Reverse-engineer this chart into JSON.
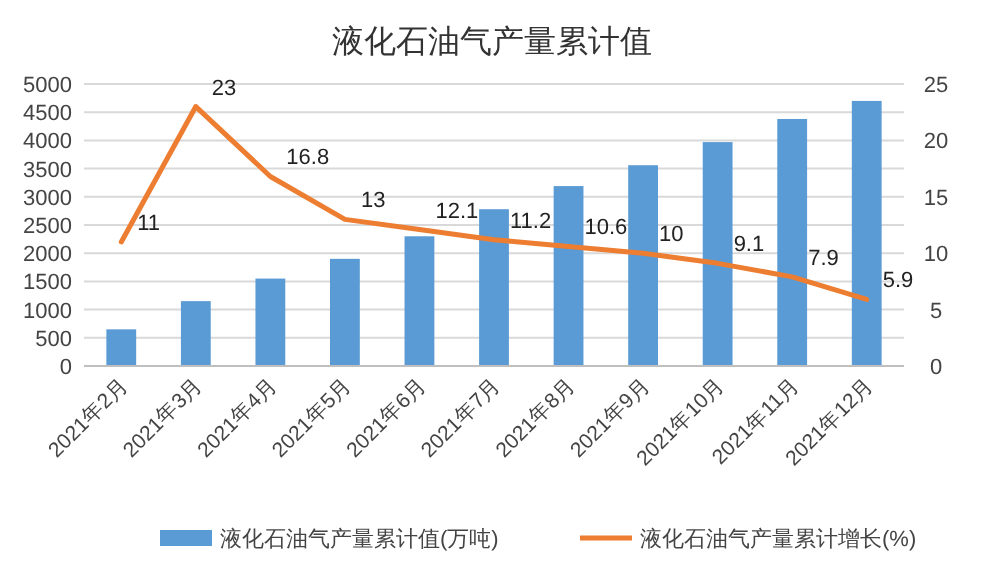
{
  "chart_data": {
    "type": "bar",
    "title": "液化石油气产量累计值",
    "categories": [
      "2021年2月",
      "2021年3月",
      "2021年4月",
      "2021年5月",
      "2021年6月",
      "2021年7月",
      "2021年8月",
      "2021年9月",
      "2021年10月",
      "2021年11月",
      "2021年12月"
    ],
    "series": [
      {
        "name": "液化石油气产量累计值(万吨)",
        "color": "#5b9bd5",
        "values": [
          650,
          1150,
          1550,
          1900,
          2300,
          2780,
          3190,
          3560,
          3970,
          4380,
          4700
        ]
      },
      {
        "name": "液化石油气产量累计增长(%)",
        "type": "line",
        "axis": "y2",
        "color": "#ed7d31",
        "values": [
          11,
          23,
          16.8,
          13,
          12.1,
          11.2,
          10.6,
          10,
          9.1,
          7.9,
          5.9
        ],
        "value_labels": [
          "11",
          "23",
          "16.8",
          "13",
          "12.1",
          "11.2",
          "10.6",
          "10",
          "9.1",
          "7.9",
          "5.9"
        ]
      }
    ],
    "ylim": [
      0,
      5000
    ],
    "yticks": [
      0,
      500,
      1000,
      1500,
      2000,
      2500,
      3000,
      3500,
      4000,
      4500,
      5000
    ],
    "y2lim": [
      0,
      25
    ],
    "y2ticks": [
      0,
      5,
      10,
      15,
      20,
      25
    ],
    "grid": "y",
    "legend": "bottom"
  }
}
